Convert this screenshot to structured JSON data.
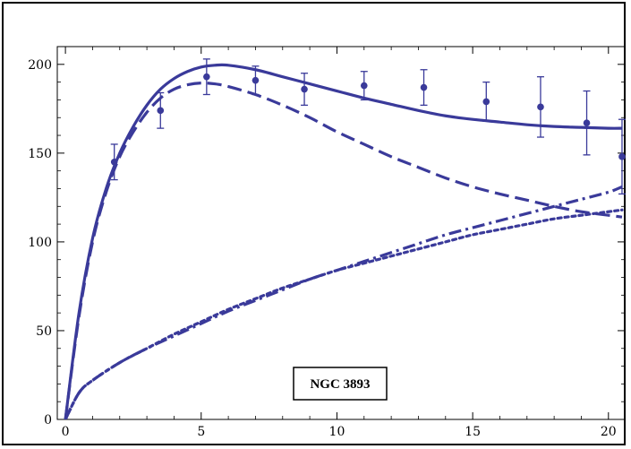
{
  "chart_data": {
    "type": "line",
    "title": "",
    "xlabel": "",
    "ylabel": "",
    "xlim": [
      -0.3,
      20.6
    ],
    "ylim": [
      0,
      210
    ],
    "x_ticks": [
      0,
      5,
      10,
      15,
      20
    ],
    "y_ticks": [
      0,
      50,
      100,
      150,
      200
    ],
    "grid": false,
    "color": "#3a3a9a",
    "annotation": "NGC 3893",
    "series": [
      {
        "style": "solid",
        "x": [
          0,
          0.5,
          1,
          1.5,
          2,
          2.5,
          3,
          3.5,
          4,
          4.5,
          5,
          5.5,
          6,
          7,
          8,
          9,
          10,
          11,
          12,
          13,
          14,
          15,
          16,
          17,
          18,
          19,
          20,
          20.5
        ],
        "y": [
          0,
          60,
          102,
          130,
          150,
          165,
          177,
          186,
          192,
          196,
          198.5,
          199.5,
          199.5,
          197,
          193,
          189,
          185,
          181,
          177.5,
          174,
          171,
          169,
          167.5,
          166,
          165,
          164.5,
          164,
          164
        ]
      },
      {
        "style": "dashed",
        "x": [
          0,
          0.5,
          1,
          1.5,
          2,
          2.5,
          3,
          3.5,
          4,
          4.5,
          5,
          5.5,
          6,
          7,
          8,
          9,
          10,
          11,
          12,
          13,
          14,
          15,
          16,
          17,
          18,
          19,
          20,
          20.5
        ],
        "y": [
          0,
          58,
          100,
          128,
          148,
          162,
          173,
          181,
          186,
          188.5,
          189.5,
          189,
          187.5,
          183,
          177,
          170,
          162,
          155,
          148,
          142,
          136,
          131,
          127,
          123.5,
          120,
          117,
          115,
          114
        ]
      },
      {
        "style": "dashdot",
        "x": [
          0,
          0.5,
          1,
          2,
          3,
          4,
          5,
          6,
          7,
          8,
          9,
          10,
          11,
          12,
          13,
          14,
          15,
          16,
          17,
          18,
          19,
          20,
          20.5
        ],
        "y": [
          0,
          15,
          22,
          32,
          40,
          47,
          54,
          61,
          67,
          73,
          79,
          84,
          89,
          94,
          99,
          104,
          108,
          112,
          116,
          120,
          124,
          128,
          131
        ]
      },
      {
        "style": "dotted",
        "x": [
          0,
          0.5,
          1,
          2,
          3,
          4,
          5,
          6,
          7,
          8,
          9,
          10,
          11,
          12,
          13,
          14,
          15,
          16,
          17,
          18,
          19,
          20,
          20.5
        ],
        "y": [
          0,
          15,
          22,
          32,
          40,
          48,
          55,
          62,
          68,
          74,
          79,
          84,
          88,
          92,
          96,
          100,
          104,
          107,
          110,
          113,
          115,
          117,
          118
        ]
      }
    ],
    "data_points": {
      "x": [
        1.8,
        3.5,
        5.2,
        7.0,
        8.8,
        11.0,
        13.2,
        15.5,
        17.5,
        19.2,
        20.5
      ],
      "y": [
        145,
        174,
        193,
        191,
        186,
        188,
        187,
        179,
        176,
        167,
        148
      ],
      "err": [
        10,
        10,
        10,
        8,
        9,
        8,
        10,
        11,
        17,
        18,
        21
      ]
    }
  }
}
